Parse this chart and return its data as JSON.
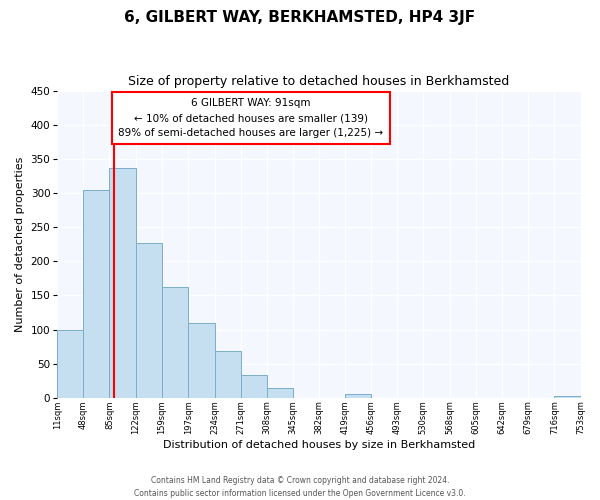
{
  "title": "6, GILBERT WAY, BERKHAMSTED, HP4 3JF",
  "subtitle": "Size of property relative to detached houses in Berkhamsted",
  "xlabel": "Distribution of detached houses by size in Berkhamsted",
  "ylabel": "Number of detached properties",
  "bin_edges": [
    11,
    48,
    85,
    122,
    159,
    197,
    234,
    271,
    308,
    345,
    382,
    419,
    456,
    493,
    530,
    568,
    605,
    642,
    679,
    716,
    753
  ],
  "bin_labels": [
    "11sqm",
    "48sqm",
    "85sqm",
    "122sqm",
    "159sqm",
    "197sqm",
    "234sqm",
    "271sqm",
    "308sqm",
    "345sqm",
    "382sqm",
    "419sqm",
    "456sqm",
    "493sqm",
    "530sqm",
    "568sqm",
    "605sqm",
    "642sqm",
    "679sqm",
    "716sqm",
    "753sqm"
  ],
  "counts": [
    99,
    305,
    337,
    226,
    163,
    109,
    69,
    34,
    14,
    0,
    0,
    5,
    0,
    0,
    0,
    0,
    0,
    0,
    0,
    3
  ],
  "bar_color": "#c5dff0",
  "bar_edge_color": "#7aaecb",
  "property_line_x": 91,
  "property_line_color": "red",
  "annotation_title": "6 GILBERT WAY: 91sqm",
  "annotation_line1": "← 10% of detached houses are smaller (139)",
  "annotation_line2": "89% of semi-detached houses are larger (1,225) →",
  "ylim": [
    0,
    450
  ],
  "yticks": [
    0,
    50,
    100,
    150,
    200,
    250,
    300,
    350,
    400,
    450
  ],
  "footer_line1": "Contains HM Land Registry data © Crown copyright and database right 2024.",
  "footer_line2": "Contains public sector information licensed under the Open Government Licence v3.0.",
  "bg_color": "#ffffff",
  "plot_bg_color": "#f5f7ff",
  "grid_color": "#ffffff",
  "title_fontsize": 11,
  "subtitle_fontsize": 9,
  "xlabel_fontsize": 8,
  "ylabel_fontsize": 8
}
